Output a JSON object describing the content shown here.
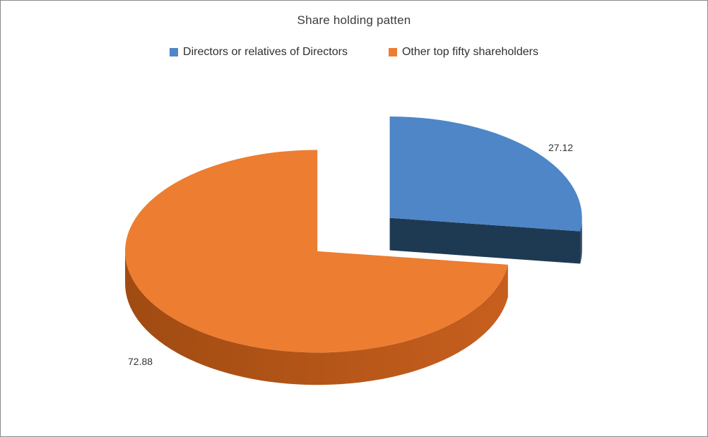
{
  "chart_data": {
    "type": "pie",
    "title": "Share holding patten",
    "effect": "3d",
    "start_angle_deg": 0,
    "direction": "clockwise",
    "legend_position": "top",
    "series": [
      {
        "name": "Directors or relatives of Directors",
        "value": 27.12,
        "color": "#4E86C8",
        "side_color": "#1E3A53",
        "side_color2": "#24466A",
        "exploded": true
      },
      {
        "name": "Other top fifty shareholders",
        "value": 72.88,
        "color": "#ED7D31",
        "side_color": "#A04B12",
        "side_color2": "#C75F1E",
        "exploded": false
      }
    ],
    "data_labels": [
      "27.12",
      "72.88"
    ]
  }
}
